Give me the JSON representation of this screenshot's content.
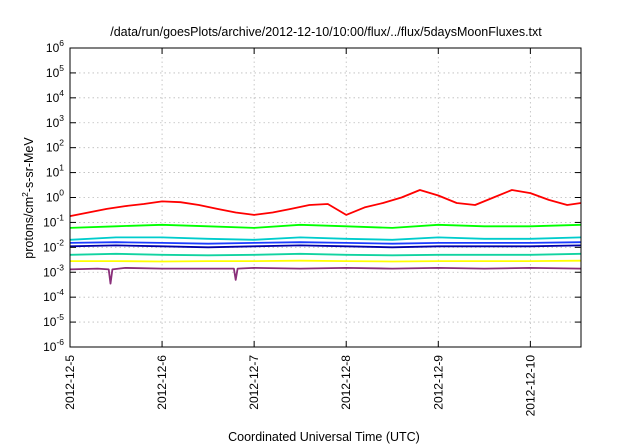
{
  "chart_data": {
    "type": "line",
    "title": "/data/run/goesPlots/archive/2012-12-10/10:00/flux/../flux/5daysMoonFluxes.txt",
    "xlabel": "Coordinated Universal Time (UTC)",
    "ylabel": {
      "prefix": "protons/cm",
      "sup": "2",
      "suffix": "-s-sr-MeV"
    },
    "yscale": "log",
    "ylim": [
      1e-06,
      1000000.0
    ],
    "xlim": [
      0,
      5.55
    ],
    "x_unit": "days after 2012-12-5",
    "grid": true,
    "legend": "none",
    "x_ticks": [
      "2012-12-5",
      "2012-12-6",
      "2012-12-7",
      "2012-12-8",
      "2012-12-9",
      "2012-12-10"
    ],
    "y_ticks": [
      {
        "base": "10",
        "exp": "-6"
      },
      {
        "base": "10",
        "exp": "-5"
      },
      {
        "base": "10",
        "exp": "-4"
      },
      {
        "base": "10",
        "exp": "-3"
      },
      {
        "base": "10",
        "exp": "-2"
      },
      {
        "base": "10",
        "exp": "-1"
      },
      {
        "base": "10",
        "exp": "0"
      },
      {
        "base": "10",
        "exp": "1"
      },
      {
        "base": "10",
        "exp": "2"
      },
      {
        "base": "10",
        "exp": "3"
      },
      {
        "base": "10",
        "exp": "4"
      },
      {
        "base": "10",
        "exp": "5"
      },
      {
        "base": "10",
        "exp": "6"
      }
    ],
    "series": [
      {
        "color": "#ff0000",
        "x": [
          0,
          0.2,
          0.4,
          0.6,
          0.8,
          1.0,
          1.2,
          1.4,
          1.6,
          1.8,
          2.0,
          2.2,
          2.4,
          2.6,
          2.8,
          3.0,
          3.2,
          3.4,
          3.6,
          3.8,
          4.0,
          4.2,
          4.4,
          4.6,
          4.8,
          5.0,
          5.2,
          5.4,
          5.55
        ],
        "y": [
          0.18,
          0.25,
          0.35,
          0.45,
          0.55,
          0.7,
          0.65,
          0.5,
          0.35,
          0.25,
          0.2,
          0.25,
          0.35,
          0.5,
          0.55,
          0.2,
          0.4,
          0.6,
          1.0,
          2.0,
          1.2,
          0.6,
          0.5,
          1.0,
          2.0,
          1.5,
          0.8,
          0.5,
          0.6
        ]
      },
      {
        "color": "#00ff00",
        "x": [
          0,
          0.5,
          1.0,
          1.5,
          2.0,
          2.5,
          3.0,
          3.5,
          4.0,
          4.5,
          5.0,
          5.55
        ],
        "y": [
          0.06,
          0.07,
          0.08,
          0.07,
          0.06,
          0.08,
          0.07,
          0.06,
          0.08,
          0.07,
          0.07,
          0.08
        ]
      },
      {
        "color": "#00cccc",
        "x": [
          0,
          0.5,
          1.0,
          1.5,
          2.0,
          2.5,
          3.0,
          3.5,
          4.0,
          4.5,
          5.0,
          5.55
        ],
        "y": [
          0.02,
          0.025,
          0.025,
          0.022,
          0.02,
          0.025,
          0.022,
          0.02,
          0.025,
          0.022,
          0.022,
          0.025
        ]
      },
      {
        "color": "#1a3cff",
        "x": [
          0,
          0.5,
          1.0,
          1.5,
          2.0,
          2.5,
          3.0,
          3.5,
          4.0,
          4.5,
          5.0,
          5.55
        ],
        "y": [
          0.015,
          0.016,
          0.015,
          0.014,
          0.015,
          0.016,
          0.015,
          0.014,
          0.015,
          0.015,
          0.015,
          0.016
        ]
      },
      {
        "color": "#0000aa",
        "x": [
          0,
          0.5,
          1.0,
          1.5,
          2.0,
          2.5,
          3.0,
          3.5,
          4.0,
          4.5,
          5.0,
          5.55
        ],
        "y": [
          0.011,
          0.012,
          0.011,
          0.01,
          0.011,
          0.012,
          0.011,
          0.01,
          0.011,
          0.011,
          0.011,
          0.012
        ]
      },
      {
        "color": "#11d3a0",
        "x": [
          0,
          0.5,
          1.0,
          1.5,
          2.0,
          2.5,
          3.0,
          3.5,
          4.0,
          4.5,
          5.0,
          5.55
        ],
        "y": [
          0.005,
          0.0055,
          0.005,
          0.0048,
          0.005,
          0.0055,
          0.005,
          0.0048,
          0.005,
          0.005,
          0.005,
          0.0055
        ]
      },
      {
        "color": "#ffff00",
        "x": [
          0,
          0.5,
          1.0,
          1.5,
          2.0,
          2.5,
          3.0,
          3.5,
          4.0,
          4.5,
          5.0,
          5.55
        ],
        "y": [
          0.0028,
          0.0028,
          0.0027,
          0.0028,
          0.0028,
          0.0029,
          0.0028,
          0.0027,
          0.0028,
          0.0028,
          0.0028,
          0.0029
        ]
      },
      {
        "color": "#8a2f7a",
        "x": [
          0,
          0.3,
          0.42,
          0.44,
          0.46,
          0.6,
          1.0,
          1.5,
          1.78,
          1.8,
          1.82,
          2.0,
          2.5,
          3.0,
          3.5,
          4.0,
          4.5,
          5.0,
          5.55
        ],
        "y": [
          0.0013,
          0.0014,
          0.0013,
          0.00035,
          0.0013,
          0.0015,
          0.0014,
          0.0014,
          0.0014,
          0.0005,
          0.0014,
          0.0015,
          0.0014,
          0.0015,
          0.0014,
          0.0015,
          0.0014,
          0.0015,
          0.0014
        ]
      }
    ]
  }
}
